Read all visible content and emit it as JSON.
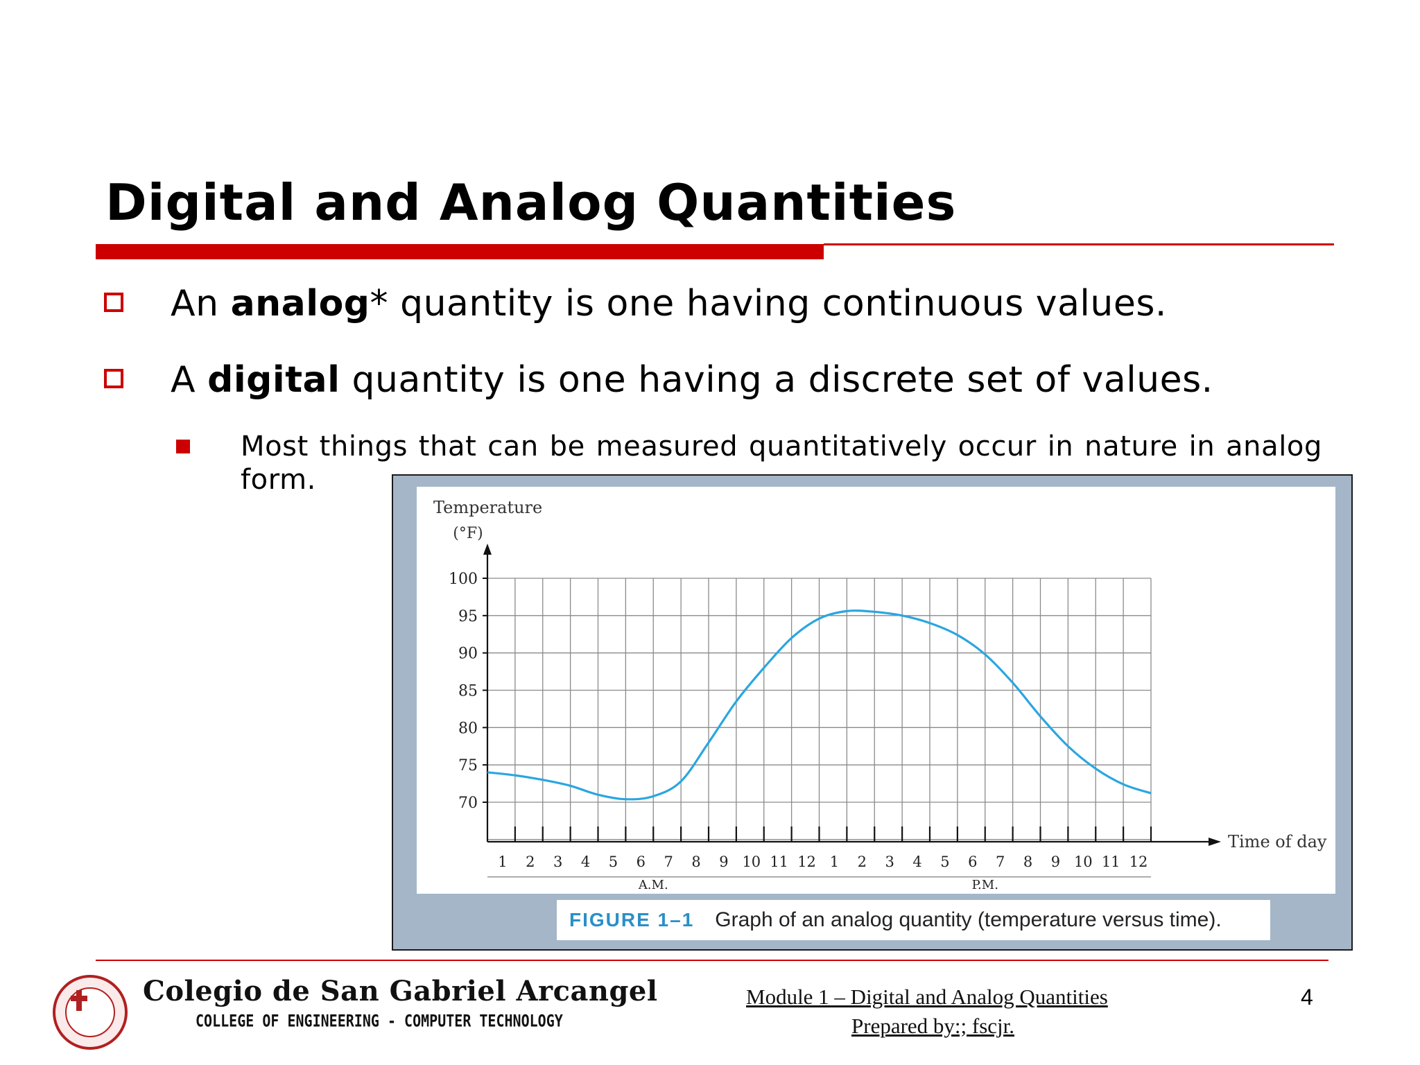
{
  "slide": {
    "title": "Digital and Analog Quantities",
    "bullets": [
      {
        "before": "An ",
        "bold": "analog",
        "after": "* quantity is one having continuous values."
      },
      {
        "before": "A ",
        "bold": "digital",
        "after": " quantity is one having a discrete set of values."
      }
    ],
    "sub_bullet": "Most things that can be measured quantitatively occur in nature in analog form.",
    "accent_color": "#cc0000"
  },
  "figure": {
    "caption_label": "FIGURE 1–1",
    "caption_text": "Graph of an analog quantity (temperature versus time).",
    "frame_color": "#a4b6c8",
    "line_color": "#2aa6e0"
  },
  "chart_data": {
    "type": "line",
    "ylabel_line1": "Temperature",
    "ylabel_line2": "(°F)",
    "xlabel": "Time of day",
    "ylim": [
      70,
      100
    ],
    "yticks": [
      100,
      95,
      90,
      85,
      80,
      75,
      70
    ],
    "xtick_labels": [
      "1",
      "2",
      "3",
      "4",
      "5",
      "6",
      "7",
      "8",
      "9",
      "10",
      "11",
      "12",
      "1",
      "2",
      "3",
      "4",
      "5",
      "6",
      "7",
      "8",
      "9",
      "10",
      "11",
      "12"
    ],
    "period_labels": {
      "am": "A.M.",
      "pm": "P.M."
    },
    "grid": true,
    "series": [
      {
        "x": [
          0,
          1,
          2,
          3,
          4,
          5,
          6,
          7,
          8,
          9,
          10,
          11,
          12,
          13,
          14,
          15,
          16,
          17,
          18,
          19,
          20,
          21,
          22,
          23,
          24
        ],
        "y": [
          74.0,
          73.6,
          73.0,
          72.2,
          71.0,
          70.4,
          70.8,
          72.8,
          78.0,
          83.5,
          88.0,
          92.0,
          94.6,
          95.6,
          95.5,
          95.0,
          94.0,
          92.4,
          89.8,
          86.0,
          81.5,
          77.5,
          74.5,
          72.4,
          71.2
        ]
      }
    ]
  },
  "footer": {
    "college_name": "Colegio de San Gabriel Arcangel",
    "college_sub": "COLLEGE OF ENGINEERING  -  COMPUTER TECHNOLOGY",
    "module": "Module 1 – Digital and Analog Quantities",
    "prepared": "Prepared by:;  fscjr.",
    "page_number": "4"
  }
}
